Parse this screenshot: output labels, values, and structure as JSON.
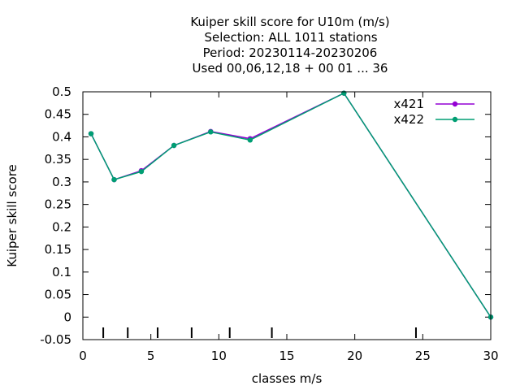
{
  "chart_data": {
    "type": "line",
    "title_lines": [
      "Kuiper skill score  for U10m (m/s)",
      "Selection: ALL   1011 stations",
      "Period: 20230114-20230206",
      "Used  00,06,12,18 + 00 01 ... 36"
    ],
    "xlabel": "classes m/s",
    "ylabel": "Kuiper skill score",
    "xlim": [
      0,
      30
    ],
    "ylim": [
      -0.05,
      0.5
    ],
    "xticks": [
      0,
      5,
      10,
      15,
      20,
      25,
      30
    ],
    "xtick_labels": [
      "0",
      "5",
      "10",
      "15",
      "20",
      "25",
      "30"
    ],
    "yticks": [
      -0.05,
      0,
      0.05,
      0.1,
      0.15,
      0.2,
      0.25,
      0.3,
      0.35,
      0.4,
      0.45,
      0.5
    ],
    "ytick_labels": [
      "-0.05",
      "0",
      "0.05",
      "0.1",
      "0.15",
      "0.2",
      "0.25",
      "0.3",
      "0.35",
      "0.4",
      "0.45",
      "0.5"
    ],
    "class_markers": [
      1.5,
      3.3,
      5.5,
      8.0,
      10.8,
      13.9,
      24.5
    ],
    "grid": false,
    "legend_position": "top-right",
    "series": [
      {
        "name": "x421",
        "color": "#9400d3",
        "x": [
          0.6,
          2.3,
          4.3,
          6.7,
          9.4,
          12.3,
          19.2,
          30
        ],
        "y": [
          0.407,
          0.305,
          0.325,
          0.381,
          0.412,
          0.396,
          0.497,
          0.0
        ]
      },
      {
        "name": "x422",
        "color": "#009e73",
        "x": [
          0.6,
          2.3,
          4.3,
          6.7,
          9.4,
          12.3,
          19.2,
          30
        ],
        "y": [
          0.407,
          0.305,
          0.323,
          0.381,
          0.411,
          0.393,
          0.497,
          0.0
        ]
      }
    ]
  }
}
